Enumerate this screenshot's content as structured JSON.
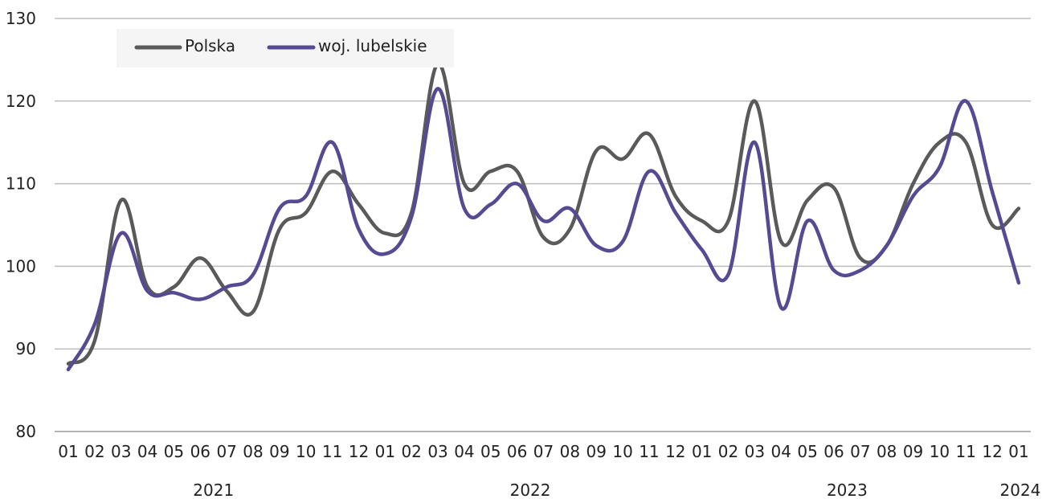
{
  "chart_data": {
    "type": "line",
    "title": "",
    "xlabel": "",
    "ylabel": "",
    "ylim": [
      80,
      130
    ],
    "yticks": [
      "80",
      "90",
      "100",
      "110",
      "120",
      "130"
    ],
    "grid": "horizontal",
    "legend_position": "top-left",
    "categories": [
      "01",
      "02",
      "03",
      "04",
      "05",
      "06",
      "07",
      "08",
      "09",
      "10",
      "11",
      "12",
      "01",
      "02",
      "03",
      "04",
      "05",
      "06",
      "07",
      "08",
      "09",
      "10",
      "11",
      "12",
      "01",
      "02",
      "03",
      "04",
      "05",
      "06",
      "07",
      "08",
      "09",
      "10",
      "11",
      "12",
      "01"
    ],
    "year_labels": [
      {
        "label": "2021",
        "from": 0,
        "to": 11
      },
      {
        "label": "2022",
        "from": 12,
        "to": 23
      },
      {
        "label": "2023",
        "from": 24,
        "to": 35
      },
      {
        "label": "2024",
        "from": 36,
        "to": 36
      }
    ],
    "series": [
      {
        "name": "Polska",
        "color": "#5a5a5a",
        "values": [
          88.2,
          91.0,
          108.0,
          97.5,
          97.5,
          101.0,
          97.0,
          94.5,
          104.5,
          106.5,
          111.5,
          107.5,
          104.0,
          106.5,
          124.5,
          110.0,
          111.5,
          111.5,
          103.5,
          104.5,
          114.0,
          113.0,
          116.0,
          108.5,
          105.5,
          105.5,
          120.0,
          103.0,
          108.0,
          109.5,
          101.0,
          102.5,
          110.0,
          115.0,
          115.0,
          105.0,
          107.0
        ]
      },
      {
        "name": "woj. lubelskie",
        "color": "#574a93",
        "values": [
          87.5,
          93.0,
          104.0,
          97.0,
          96.8,
          96.0,
          97.5,
          99.0,
          107.0,
          108.5,
          115.0,
          104.5,
          101.5,
          106.0,
          121.5,
          107.0,
          107.5,
          110.0,
          105.5,
          107.0,
          102.5,
          103.0,
          111.5,
          106.5,
          102.0,
          99.0,
          115.0,
          95.0,
          105.5,
          99.5,
          99.5,
          102.5,
          108.5,
          112.0,
          120.0,
          109.0,
          98.0
        ]
      }
    ]
  }
}
